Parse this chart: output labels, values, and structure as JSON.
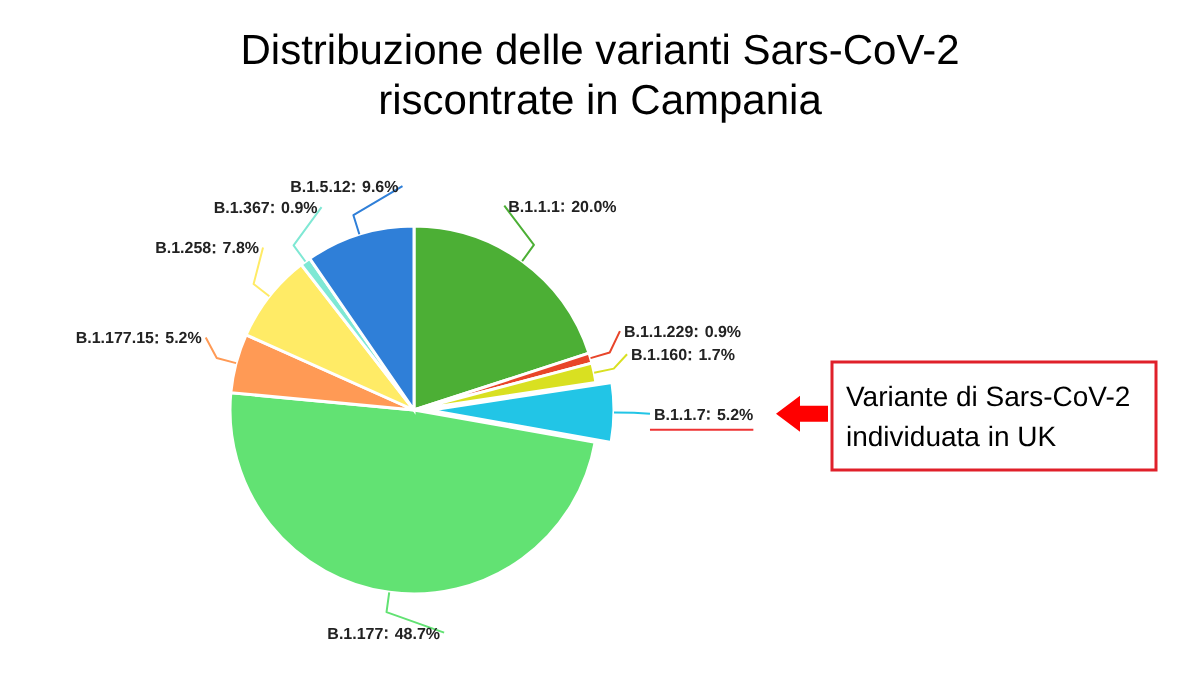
{
  "chart_data": {
    "type": "pie",
    "title": "Distribuzione delle varianti Sars-CoV-2 riscontrate in Campania",
    "categories": [
      "B.1.1.1",
      "B.1.1.229",
      "B.1.160",
      "B.1.1.7",
      "B.1.177",
      "B.1.177.15",
      "B.1.258",
      "B.1.367",
      "B.1.5.12"
    ],
    "values": [
      20.0,
      0.9,
      1.7,
      5.2,
      48.7,
      5.2,
      7.8,
      0.9,
      9.6
    ],
    "colors": [
      "#4caf35",
      "#e8452a",
      "#d9e021",
      "#22c5e6",
      "#62e273",
      "#ff9a55",
      "#ffeb66",
      "#7fe8d4",
      "#2f7fd8"
    ],
    "value_labels": [
      "20.0%",
      "0.9%",
      "1.7%",
      "5.2%",
      "48.7%",
      "5.2%",
      "7.8%",
      "0.9%",
      "9.6%"
    ],
    "annotations": [
      {
        "text": "Variante di Sars-CoV-2 individuata in UK",
        "x": "B.1.1.7"
      }
    ]
  }
}
